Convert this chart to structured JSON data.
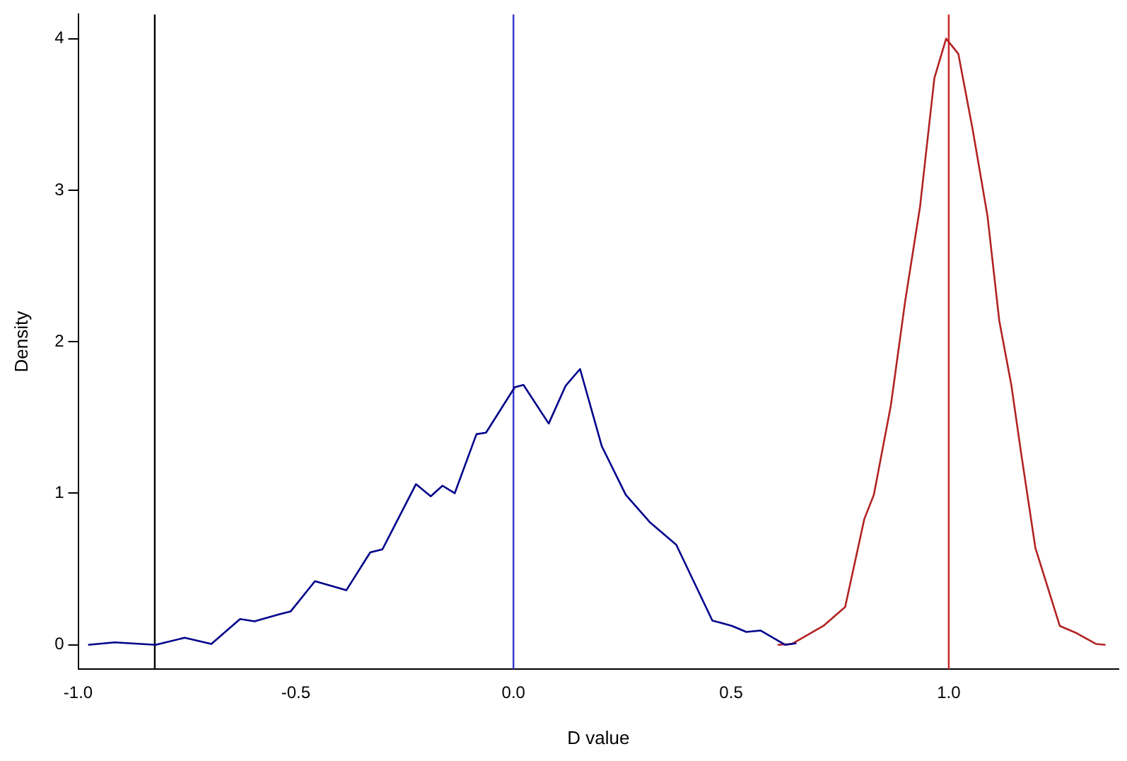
{
  "chart_data": {
    "type": "line",
    "xlabel": "D value",
    "ylabel": "Density",
    "xlim": [
      -1.0,
      1.39
    ],
    "xticks": [
      {
        "value": -1,
        "label": "-1.0"
      },
      {
        "value": -0.5,
        "label": "-0.5"
      },
      {
        "value": 0,
        "label": "0.0"
      },
      {
        "value": 0.5,
        "label": "0.5"
      },
      {
        "value": 1,
        "label": "1.0"
      }
    ],
    "ylim": [
      -0.16,
      4.16
    ],
    "yticks": [
      0,
      1,
      2,
      3,
      4
    ],
    "grid": false,
    "legend": false,
    "marker": "none",
    "line_style": "solid",
    "series": [
      {
        "color": "#00008b",
        "x": [
          -0.977,
          -0.916,
          -0.822,
          -0.755,
          -0.694,
          -0.628,
          -0.595,
          -0.539,
          -0.512,
          -0.456,
          -0.384,
          -0.329,
          -0.301,
          -0.224,
          -0.19,
          -0.163,
          -0.135,
          -0.085,
          -0.063,
          0.003,
          0.023,
          0.081,
          0.12,
          0.153,
          0.203,
          0.258,
          0.313,
          0.374,
          0.457,
          0.502,
          0.535,
          0.568,
          0.624,
          0.65
        ],
        "values": [
          0.0,
          0.016,
          0.0,
          0.047,
          0.006,
          0.17,
          0.155,
          0.2,
          0.22,
          0.42,
          0.36,
          0.61,
          0.63,
          1.06,
          0.98,
          1.05,
          1.0,
          1.39,
          1.4,
          1.7,
          1.715,
          1.46,
          1.71,
          1.82,
          1.31,
          0.99,
          0.81,
          0.66,
          0.16,
          0.125,
          0.085,
          0.094,
          0.0,
          0.01
        ]
      },
      {
        "color": "#b22222",
        "x": [
          0.607,
          0.64,
          0.712,
          0.762,
          0.806,
          0.828,
          0.867,
          0.9,
          0.934,
          0.967,
          0.994,
          1.022,
          1.055,
          1.089,
          1.116,
          1.144,
          1.166,
          1.199,
          1.255,
          1.293,
          1.338,
          1.36
        ],
        "values": [
          0.0,
          0.006,
          0.125,
          0.25,
          0.83,
          0.99,
          1.58,
          2.27,
          2.89,
          3.74,
          4.0,
          3.9,
          3.4,
          2.83,
          2.14,
          1.71,
          1.27,
          0.64,
          0.125,
          0.078,
          0.006,
          0.0
        ]
      }
    ],
    "ref_lines": [
      {
        "axis": "x",
        "value": -0.824,
        "color": "#000000"
      },
      {
        "axis": "x",
        "value": 0,
        "color": "#3333cc"
      },
      {
        "axis": "x",
        "value": 1,
        "color": "#cc2222"
      }
    ]
  }
}
